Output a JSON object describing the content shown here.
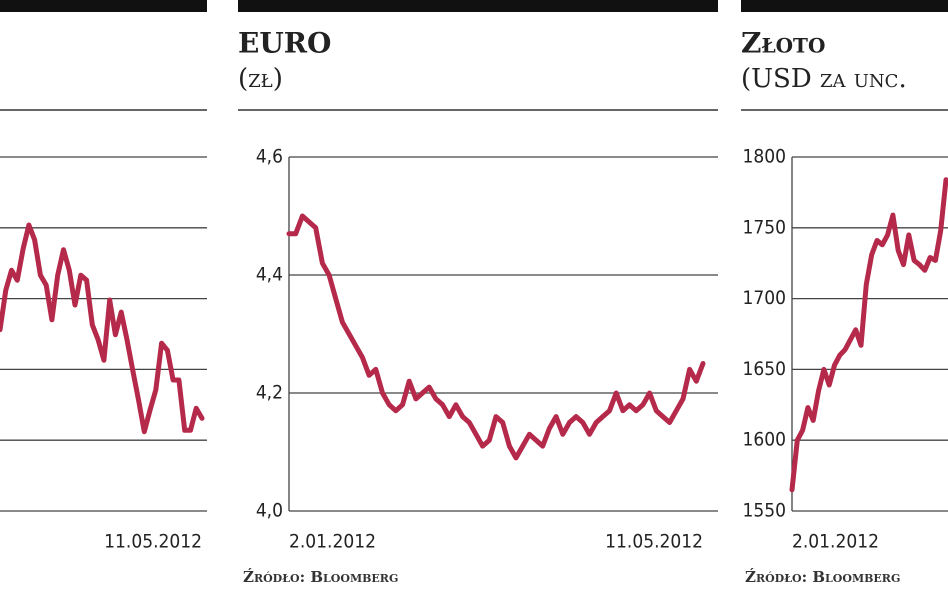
{
  "chart_data": [
    {
      "type": "line",
      "color": "#b5294a",
      "categories": [
        null,
        null,
        null,
        null,
        null,
        null,
        null,
        null,
        null,
        null,
        null,
        null,
        null,
        null,
        null,
        null,
        null,
        null,
        null,
        null,
        null,
        null,
        null,
        null,
        null,
        null,
        null,
        null,
        null,
        null,
        null,
        null,
        null,
        null,
        null,
        "11.05.2012"
      ],
      "values": [
        2.56,
        3.12,
        3.4,
        3.26,
        3.7,
        4.04,
        3.83,
        3.33,
        3.19,
        2.7,
        3.33,
        3.69,
        3.4,
        2.91,
        3.33,
        3.26,
        2.63,
        2.42,
        2.13,
        2.98,
        2.49,
        2.81,
        2.42,
        1.99,
        1.57,
        1.12,
        1.43,
        1.71,
        2.37,
        2.27,
        1.85,
        1.85,
        1.14,
        1.14,
        1.45,
        1.31
      ],
      "ylim": [
        0,
        5
      ],
      "ygrid": [
        0,
        1,
        2,
        3,
        4,
        5
      ]
    },
    {
      "type": "line",
      "title": "EURO",
      "subtitle": "(zł)",
      "color": "#b5294a",
      "categories": [
        "2.01.2012",
        null,
        null,
        null,
        null,
        null,
        null,
        null,
        null,
        null,
        null,
        null,
        null,
        null,
        null,
        null,
        null,
        null,
        null,
        null,
        null,
        null,
        null,
        null,
        null,
        null,
        null,
        null,
        null,
        null,
        null,
        null,
        null,
        null,
        null,
        null,
        null,
        null,
        null,
        null,
        null,
        null,
        null,
        null,
        null,
        null,
        null,
        null,
        null,
        null,
        null,
        null,
        null,
        null,
        null,
        null,
        null,
        null,
        null,
        null,
        null,
        null,
        "11.05.2012"
      ],
      "values": [
        4.47,
        4.47,
        4.5,
        4.49,
        4.48,
        4.42,
        4.4,
        4.36,
        4.32,
        4.3,
        4.28,
        4.26,
        4.23,
        4.24,
        4.2,
        4.18,
        4.17,
        4.18,
        4.22,
        4.19,
        4.2,
        4.21,
        4.19,
        4.18,
        4.16,
        4.18,
        4.16,
        4.15,
        4.13,
        4.11,
        4.12,
        4.16,
        4.15,
        4.11,
        4.09,
        4.11,
        4.13,
        4.12,
        4.11,
        4.14,
        4.16,
        4.13,
        4.15,
        4.16,
        4.15,
        4.13,
        4.15,
        4.16,
        4.17,
        4.2,
        4.17,
        4.18,
        4.17,
        4.18,
        4.2,
        4.17,
        4.16,
        4.15,
        4.17,
        4.19,
        4.24,
        4.22,
        4.25
      ],
      "ylim": [
        4.0,
        4.6
      ],
      "yticks": [
        {
          "value": 4.0,
          "label": "4,0"
        },
        {
          "value": 4.2,
          "label": "4,2"
        },
        {
          "value": 4.4,
          "label": "4,4"
        },
        {
          "value": 4.6,
          "label": "4,6"
        }
      ],
      "source": "Źródło: Bloomberg"
    },
    {
      "type": "line",
      "title": "Złoto",
      "subtitle": "(USD za unc.",
      "color": "#b5294a",
      "categories": [
        "2.01.2012",
        null,
        null,
        null,
        null,
        null,
        null,
        null,
        null,
        null,
        null,
        null,
        null,
        null,
        null,
        null,
        null,
        null,
        null,
        null,
        null,
        null,
        null,
        null,
        null,
        null,
        null,
        null,
        null,
        null
      ],
      "values": [
        1565,
        1600,
        1607,
        1623,
        1614,
        1635,
        1650,
        1639,
        1653,
        1660,
        1664,
        1671,
        1678,
        1667,
        1710,
        1731,
        1741,
        1738,
        1745,
        1759,
        1734,
        1724,
        1745,
        1727,
        1724,
        1720,
        1729,
        1727,
        1748,
        1784
      ],
      "ylim": [
        1550,
        1800
      ],
      "yticks": [
        1550,
        1600,
        1650,
        1700,
        1750,
        1800
      ],
      "source": "Źródło: Bloomberg"
    }
  ]
}
